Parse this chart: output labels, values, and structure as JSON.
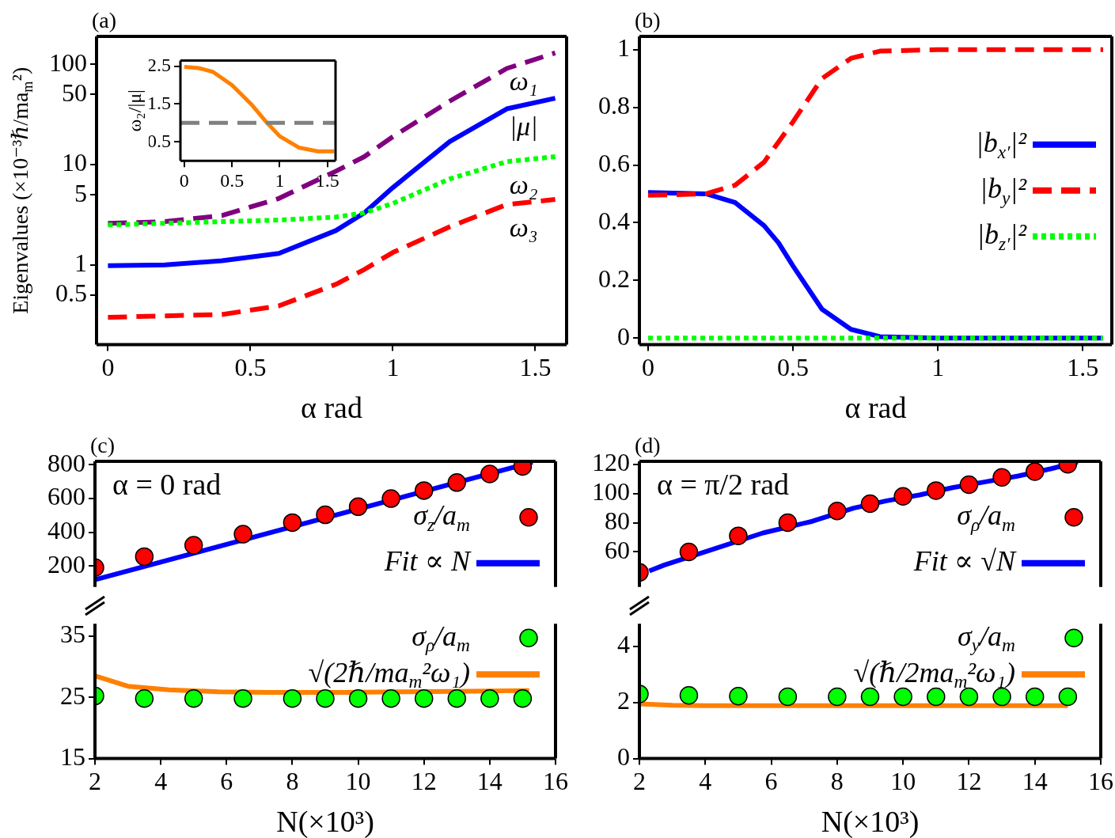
{
  "chart_data": [
    {
      "type": "line",
      "title": "(a)",
      "xlabel": "α rad",
      "ylabel": "Eigenvalues (×10⁻³ℏ/ma$_{m}$²)",
      "log": "y",
      "xlim": [
        -0.04,
        1.61
      ],
      "xticks": [
        0,
        0.5,
        1,
        1.5
      ],
      "ylim": [
        0.16,
        190
      ],
      "yticks": [
        0.5,
        1,
        5,
        10,
        50,
        100
      ],
      "x": [
        0,
        0.2,
        0.4,
        0.6,
        0.8,
        0.9,
        1.0,
        1.2,
        1.4,
        1.57
      ],
      "series": [
        {
          "name": "ω₁",
          "color": "#800080",
          "line_style": "dashed",
          "values": [
            2.6,
            2.7,
            3.1,
            4.6,
            8.6,
            12,
            19,
            43,
            91,
            130
          ]
        },
        {
          "name": "|μ|",
          "color": "#0000ff",
          "line_style": "solid",
          "values": [
            0.98,
            1.0,
            1.1,
            1.3,
            2.2,
            3.3,
            5.9,
            17,
            36,
            46
          ]
        },
        {
          "name": "ω₂",
          "color": "#00ff00",
          "line_style": "dotted",
          "values": [
            2.5,
            2.6,
            2.7,
            2.8,
            3.0,
            3.3,
            4.1,
            7.2,
            10.7,
            12
          ]
        },
        {
          "name": "ω₃",
          "color": "#ff0000",
          "line_style": "dashed",
          "values": [
            0.3,
            0.31,
            0.32,
            0.39,
            0.64,
            0.9,
            1.33,
            2.4,
            4.0,
            4.5
          ]
        }
      ]
    },
    {
      "type": "line",
      "ylabel": "ω₂/|μ|",
      "xlim": [
        -0.04,
        1.585
      ],
      "xticks": [
        0,
        0.5,
        1,
        1.5
      ],
      "ylim": [
        0,
        2.65
      ],
      "yticks": [
        0.5,
        1.5,
        2.5
      ],
      "x": [
        0,
        0.15,
        0.3,
        0.5,
        0.7,
        0.85,
        1.0,
        1.2,
        1.4,
        1.57
      ],
      "series": [
        {
          "color": "#ff8000",
          "line_style": "solid",
          "values": [
            2.48,
            2.45,
            2.35,
            2.0,
            1.5,
            1.05,
            0.65,
            0.35,
            0.25,
            0.25
          ]
        }
      ],
      "ref_lines": [
        {
          "axis": "y",
          "value": 1,
          "color": "#808080",
          "line_style": "dashed"
        }
      ]
    },
    {
      "type": "line",
      "title": "(b)",
      "xlabel": "α rad",
      "legend": "right",
      "xlim": [
        -0.03,
        1.6
      ],
      "xticks": [
        0,
        0.5,
        1,
        1.5
      ],
      "ylim": [
        -0.023,
        1.046
      ],
      "yticks": [
        0,
        0.2,
        0.4,
        0.6,
        0.8,
        1
      ],
      "x": [
        0,
        0.2,
        0.3,
        0.4,
        0.45,
        0.5,
        0.6,
        0.7,
        0.8,
        1.0,
        1.57
      ],
      "series": [
        {
          "name": "|b$_{x′}$|²",
          "color": "#0000ff",
          "line_style": "solid",
          "values": [
            0.505,
            0.5,
            0.47,
            0.39,
            0.33,
            0.25,
            0.1,
            0.03,
            0.005,
            0,
            0
          ]
        },
        {
          "name": "|b$_{y}$|²",
          "color": "#ff0000",
          "line_style": "dashed",
          "values": [
            0.495,
            0.5,
            0.53,
            0.61,
            0.68,
            0.75,
            0.9,
            0.97,
            0.995,
            1,
            1
          ]
        },
        {
          "name": "|b$_{z′}$|²",
          "color": "#00ff00",
          "line_style": "dotted",
          "values": [
            0,
            0,
            0,
            0,
            0,
            0,
            0,
            0,
            0,
            0,
            0
          ]
        }
      ]
    },
    {
      "type": "scatter",
      "title": "(c)",
      "annotations": [
        "α = 0 rad"
      ],
      "legend": "bottom right",
      "tick_labels": "y",
      "xlim": [
        2,
        16
      ],
      "ylim": [
        75,
        820
      ],
      "yticks": [
        200,
        400,
        600,
        800
      ],
      "series": [
        {
          "name": "σ$_{z}$/a$_{m}$",
          "marker": "circle",
          "color": "#ff0000",
          "x": [
            2,
            3.5,
            5,
            6.5,
            8,
            9,
            10,
            11,
            12,
            13,
            14,
            15
          ],
          "values": [
            190,
            255,
            323,
            388,
            457,
            503,
            551,
            599,
            647,
            694,
            745,
            790
          ]
        },
        {
          "name": "Fit ∝ N",
          "type": "line",
          "color": "#0000ff",
          "x": [
            2,
            15.3
          ],
          "values": [
            118,
            815
          ]
        }
      ]
    },
    {
      "type": "scatter",
      "xlabel": "N(×10³)",
      "legend": "top right",
      "xlim": [
        2,
        16
      ],
      "xticks": [
        2,
        4,
        6,
        8,
        10,
        12,
        14,
        16
      ],
      "ylim": [
        15,
        37
      ],
      "yticks": [
        15,
        25,
        35
      ],
      "series": [
        {
          "name": "σ$_{ρ}$/a$_{m}$",
          "marker": "circle",
          "color": "#00ff00",
          "x": [
            2,
            3.5,
            5,
            6.5,
            8,
            9,
            10,
            11,
            12,
            13,
            14,
            15
          ],
          "values": [
            25.2,
            24.8,
            24.8,
            24.8,
            24.8,
            24.8,
            24.8,
            24.8,
            24.8,
            24.8,
            24.8,
            24.8
          ]
        },
        {
          "name": "√(2ℏ/ma$_{m}$²ω₁)",
          "type": "line",
          "color": "#ff8000",
          "x": [
            2,
            3,
            4.25,
            5.75,
            7.25,
            9.5,
            11.5,
            13.5,
            15.2
          ],
          "values": [
            28.5,
            26.8,
            26.2,
            25.9,
            25.8,
            25.8,
            25.9,
            26,
            26.1
          ]
        }
      ]
    },
    {
      "type": "scatter",
      "title": "(d)",
      "annotations": [
        "α = π/2 rad"
      ],
      "legend": "bottom right",
      "tick_labels": "y",
      "xlim": [
        2,
        16
      ],
      "ylim": [
        36,
        122
      ],
      "yticks": [
        60,
        80,
        100,
        120
      ],
      "series": [
        {
          "name": "σ$_{ρ}$/a$_{m}$",
          "marker": "circle",
          "color": "#ff0000",
          "x": [
            2,
            3.5,
            5,
            6.5,
            8,
            9,
            10,
            11,
            12,
            13,
            14,
            15
          ],
          "values": [
            46,
            60,
            71,
            80,
            88,
            93,
            98,
            102,
            106,
            111,
            115,
            120
          ]
        },
        {
          "name": "Fit ∝ √N",
          "type": "line",
          "color": "#0000ff",
          "x": [
            2.3,
            2.75,
            4.25,
            5.75,
            7.25,
            8.5,
            9.5,
            10.5,
            11.5,
            12.5,
            13.5,
            14.5,
            15.3
          ],
          "values": [
            47,
            51,
            62,
            73,
            81,
            90,
            95,
            99,
            104,
            108,
            112,
            117,
            121.5
          ]
        }
      ]
    },
    {
      "type": "scatter",
      "xlabel": "N(×10³)",
      "legend": "top right",
      "xlim": [
        2,
        16
      ],
      "xticks": [
        2,
        4,
        6,
        8,
        10,
        12,
        14,
        16
      ],
      "ylim": [
        0,
        4.8
      ],
      "yticks": [
        0,
        2,
        4
      ],
      "series": [
        {
          "name": "σ$_{y}$/a$_{m}$",
          "marker": "circle",
          "color": "#00ff00",
          "x": [
            2,
            3.5,
            5,
            6.5,
            8,
            9,
            10,
            11,
            12,
            13,
            14,
            15
          ],
          "values": [
            2.3,
            2.25,
            2.22,
            2.2,
            2.2,
            2.2,
            2.2,
            2.2,
            2.2,
            2.2,
            2.2,
            2.2
          ]
        },
        {
          "name": "√(ℏ/2ma$_{m}$²ω₁)",
          "type": "line",
          "color": "#ff8000",
          "x": [
            2,
            3,
            4,
            6,
            8,
            10,
            12,
            15
          ],
          "values": [
            1.95,
            1.9,
            1.88,
            1.88,
            1.88,
            1.88,
            1.88,
            1.88
          ]
        }
      ]
    }
  ]
}
